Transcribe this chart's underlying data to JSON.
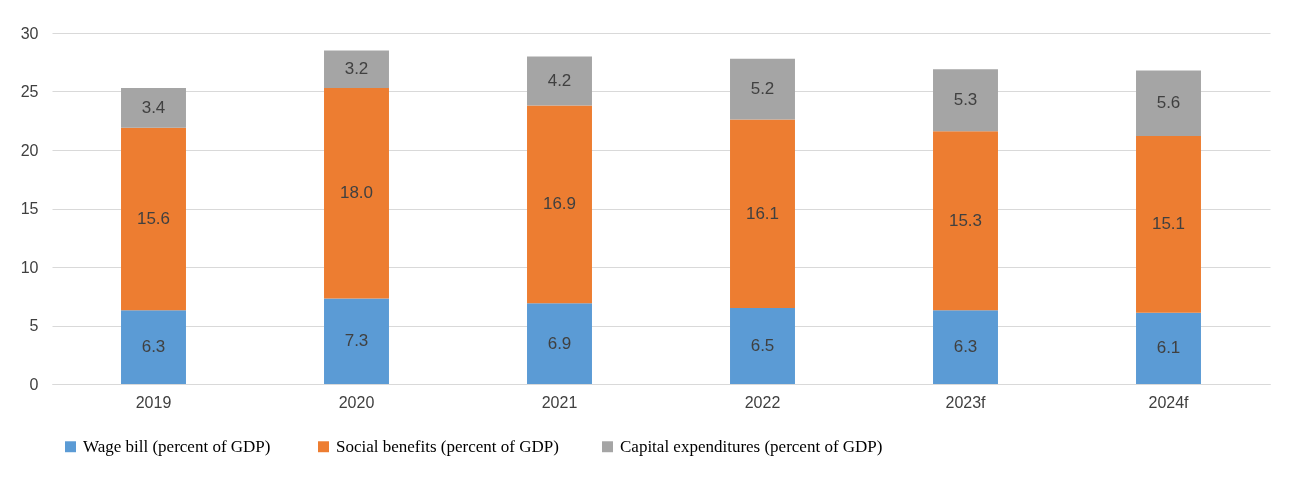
{
  "chart_data": {
    "type": "bar",
    "stacked": true,
    "categories": [
      "2019",
      "2020",
      "2021",
      "2022",
      "2023f",
      "2024f"
    ],
    "series": [
      {
        "name": "Wage bill  (percent of GDP)",
        "color": "#5b9bd5",
        "values": [
          6.3,
          7.3,
          6.9,
          6.5,
          6.3,
          6.1
        ],
        "value_labels": [
          "6.3",
          "7.3",
          "6.9",
          "6.5",
          "6.3",
          "6.1"
        ]
      },
      {
        "name": "Social benefits (percent of GDP)",
        "color": "#ed7d31",
        "values": [
          15.6,
          18.0,
          16.9,
          16.1,
          15.3,
          15.1
        ],
        "value_labels": [
          "15.6",
          "18.0",
          "16.9",
          "16.1",
          "15.3",
          "15.1"
        ]
      },
      {
        "name": "Capital expenditures (percent of GDP)",
        "color": "#a5a5a5",
        "values": [
          3.4,
          3.2,
          4.2,
          5.2,
          5.3,
          5.6
        ],
        "value_labels": [
          "3.4",
          "3.2",
          "4.2",
          "5.2",
          "5.3",
          "5.6"
        ]
      }
    ],
    "ylim": [
      0,
      30
    ],
    "yticks": [
      0,
      5,
      10,
      15,
      20,
      25,
      30
    ],
    "grid": "y",
    "legend": "bottom"
  }
}
